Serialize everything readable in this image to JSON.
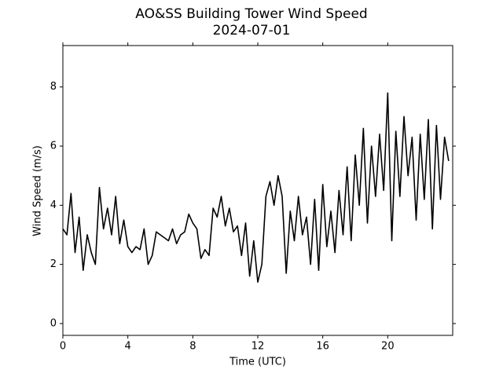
{
  "chart_data": {
    "type": "line",
    "title": "AO&SS Building Tower Wind Speed",
    "subtitle": "2024-07-01",
    "x_label": "Time (UTC)",
    "y_label": "Wind Speed (m/s)",
    "xlim": [
      0,
      24
    ],
    "ylim": [
      -0.4,
      9.4
    ],
    "xticks": [
      0,
      4,
      8,
      12,
      16,
      20
    ],
    "yticks": [
      0,
      2,
      4,
      6,
      8
    ],
    "grid": false,
    "x": [
      0,
      0.25,
      0.5,
      0.75,
      1,
      1.25,
      1.5,
      1.75,
      2,
      2.25,
      2.5,
      2.75,
      3,
      3.25,
      3.5,
      3.75,
      4,
      4.25,
      4.5,
      4.75,
      5,
      5.25,
      5.5,
      5.75,
      6,
      6.25,
      6.5,
      6.75,
      7,
      7.25,
      7.5,
      7.75,
      8,
      8.25,
      8.5,
      8.75,
      9,
      9.25,
      9.5,
      9.75,
      10,
      10.25,
      10.5,
      10.75,
      11,
      11.25,
      11.5,
      11.75,
      12,
      12.25,
      12.5,
      12.75,
      13,
      13.25,
      13.5,
      13.75,
      14,
      14.25,
      14.5,
      14.75,
      15,
      15.25,
      15.5,
      15.75,
      16,
      16.25,
      16.5,
      16.75,
      17,
      17.25,
      17.5,
      17.75,
      18,
      18.25,
      18.5,
      18.75,
      19,
      19.25,
      19.5,
      19.75,
      20,
      20.25,
      20.5,
      20.75,
      21,
      21.25,
      21.5,
      21.75,
      22,
      22.25,
      22.5,
      22.75,
      23,
      23.25,
      23.5,
      23.75
    ],
    "series": [
      {
        "color": "#000000",
        "values": [
          3.2,
          3.0,
          4.4,
          2.4,
          3.6,
          1.8,
          3.0,
          2.4,
          2.0,
          4.6,
          3.2,
          3.9,
          3.0,
          4.3,
          2.7,
          3.5,
          2.6,
          2.4,
          2.6,
          2.5,
          3.2,
          2.0,
          2.3,
          3.1,
          3.0,
          2.9,
          2.8,
          3.2,
          2.7,
          3.0,
          3.1,
          3.7,
          3.4,
          3.2,
          2.2,
          2.5,
          2.3,
          3.9,
          3.6,
          4.3,
          3.3,
          3.9,
          3.1,
          3.3,
          2.3,
          3.4,
          1.6,
          2.8,
          1.4,
          2.0,
          4.3,
          4.8,
          4.0,
          5.0,
          4.3,
          1.7,
          3.8,
          2.8,
          4.3,
          3.0,
          3.6,
          2.0,
          4.2,
          1.8,
          4.7,
          2.6,
          3.8,
          2.4,
          4.5,
          3.0,
          5.3,
          2.8,
          5.7,
          4.0,
          6.6,
          3.4,
          6.0,
          4.3,
          6.4,
          4.5,
          7.8,
          2.8,
          6.5,
          4.3,
          7.0,
          5.0,
          6.3,
          3.5,
          6.4,
          4.2,
          6.9,
          3.2,
          6.7,
          4.2,
          6.3,
          5.5
        ]
      }
    ]
  }
}
